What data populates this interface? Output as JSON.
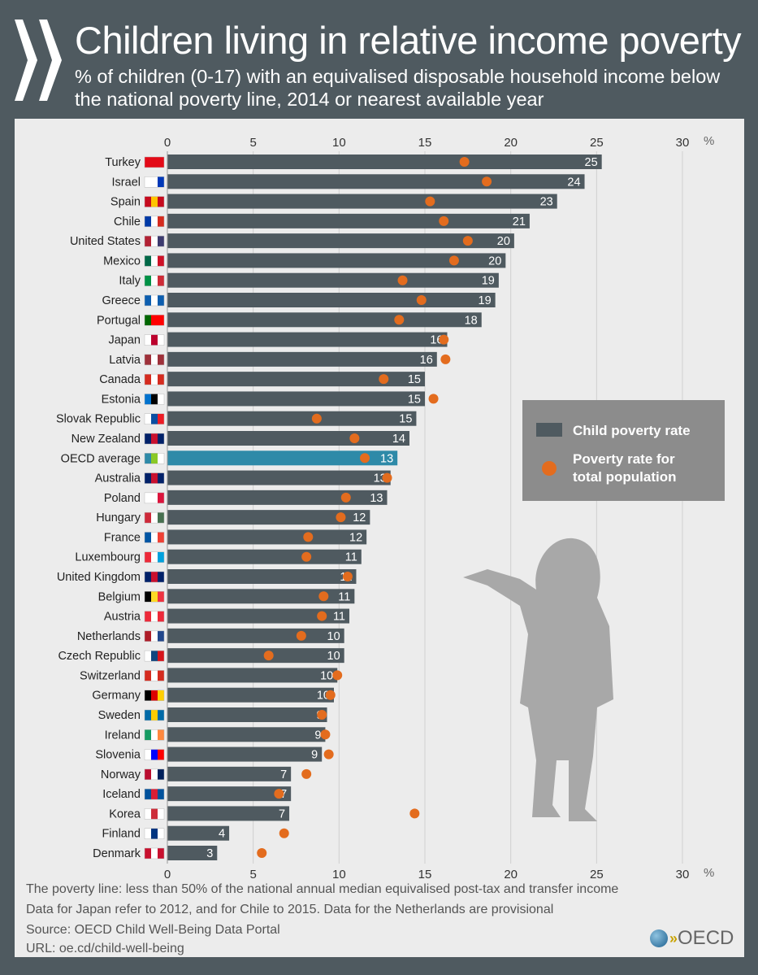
{
  "header": {
    "title": "Children living in relative income poverty",
    "subtitle": "% of children (0-17) with an equivalised disposable household income below the national poverty line, 2014 or nearest available year"
  },
  "chart_data": {
    "type": "bar",
    "orientation": "horizontal",
    "xlim": [
      0,
      30
    ],
    "xticks": [
      0,
      5,
      10,
      15,
      20,
      25,
      30
    ],
    "unit_label": "%",
    "grid": true,
    "legend_position": "right",
    "categories": [
      "Turkey",
      "Israel",
      "Spain",
      "Chile",
      "United States",
      "Mexico",
      "Italy",
      "Greece",
      "Portugal",
      "Japan",
      "Latvia",
      "Canada",
      "Estonia",
      "Slovak Republic",
      "New Zealand",
      "OECD average",
      "Australia",
      "Poland",
      "Hungary",
      "France",
      "Luxembourg",
      "United Kingdom",
      "Belgium",
      "Austria",
      "Netherlands",
      "Czech Republic",
      "Switzerland",
      "Germany",
      "Sweden",
      "Ireland",
      "Slovenia",
      "Norway",
      "Iceland",
      "Korea",
      "Finland",
      "Denmark"
    ],
    "series": [
      {
        "name": "Child poverty rate",
        "type": "bar",
        "color": "#4f5a60",
        "highlight_color": "#2e8aa8",
        "values": [
          25.3,
          24.3,
          22.7,
          21.1,
          20.2,
          19.7,
          19.3,
          19.1,
          18.3,
          16.3,
          15.7,
          15.0,
          15.0,
          14.5,
          14.1,
          13.4,
          13.0,
          12.8,
          11.8,
          11.6,
          11.3,
          11.0,
          10.9,
          10.6,
          10.3,
          10.3,
          9.9,
          9.7,
          9.3,
          9.2,
          9.0,
          7.2,
          7.2,
          7.1,
          3.6,
          2.9
        ],
        "labels": [
          "25",
          "24",
          "23",
          "21",
          "20",
          "20",
          "19",
          "19",
          "18",
          "16",
          "16",
          "15",
          "15",
          "15",
          "14",
          "13",
          "13",
          "13",
          "12",
          "12",
          "11",
          "11",
          "11",
          "11",
          "10",
          "10",
          "10",
          "10",
          "9",
          "9",
          "9",
          "7",
          "7",
          "7",
          "4",
          "3"
        ]
      },
      {
        "name": "Poverty rate for total population",
        "type": "scatter",
        "color": "#e36c1e",
        "values": [
          17.3,
          18.6,
          15.3,
          16.1,
          17.5,
          16.7,
          13.7,
          14.8,
          13.5,
          16.1,
          16.2,
          12.6,
          15.5,
          8.7,
          10.9,
          11.5,
          12.8,
          10.4,
          10.1,
          8.2,
          8.1,
          10.5,
          9.1,
          9.0,
          7.8,
          5.9,
          9.9,
          9.5,
          9.0,
          9.2,
          9.4,
          8.1,
          6.5,
          14.4,
          6.8,
          5.5
        ]
      }
    ],
    "legend": [
      "Child poverty rate",
      "Poverty rate for total population"
    ]
  },
  "flags": [
    [
      "#e30a17",
      "#e30a17",
      "#e30a17"
    ],
    [
      "#fff",
      "#fff",
      "#0038b8"
    ],
    [
      "#c60b1e",
      "#ffc400",
      "#c60b1e"
    ],
    [
      "#0039a6",
      "#fff",
      "#d52b1e"
    ],
    [
      "#b22234",
      "#fff",
      "#3c3b6e"
    ],
    [
      "#006847",
      "#fff",
      "#ce1126"
    ],
    [
      "#009246",
      "#fff",
      "#ce2b37"
    ],
    [
      "#0d5eaf",
      "#fff",
      "#0d5eaf"
    ],
    [
      "#006600",
      "#ff0000",
      "#ff0000"
    ],
    [
      "#fff",
      "#bc002d",
      "#fff"
    ],
    [
      "#9e3039",
      "#fff",
      "#9e3039"
    ],
    [
      "#d52b1e",
      "#fff",
      "#d52b1e"
    ],
    [
      "#0072ce",
      "#000",
      "#fff"
    ],
    [
      "#fff",
      "#0b4ea2",
      "#ee1c25"
    ],
    [
      "#012169",
      "#c8102e",
      "#012169"
    ],
    [
      "#2e8aa8",
      "#8ac926",
      "#fff"
    ],
    [
      "#012169",
      "#c8102e",
      "#012169"
    ],
    [
      "#fff",
      "#fff",
      "#dc143c"
    ],
    [
      "#ce2939",
      "#fff",
      "#477050"
    ],
    [
      "#0055a4",
      "#fff",
      "#ef4135"
    ],
    [
      "#ed2939",
      "#fff",
      "#00a1de"
    ],
    [
      "#012169",
      "#c8102e",
      "#012169"
    ],
    [
      "#000",
      "#fdda24",
      "#ef3340"
    ],
    [
      "#ed2939",
      "#fff",
      "#ed2939"
    ],
    [
      "#ae1c28",
      "#fff",
      "#21468b"
    ],
    [
      "#fff",
      "#11457e",
      "#d7141a"
    ],
    [
      "#d52b1e",
      "#fff",
      "#d52b1e"
    ],
    [
      "#000",
      "#dd0000",
      "#ffce00"
    ],
    [
      "#006aa7",
      "#fecc00",
      "#006aa7"
    ],
    [
      "#169b62",
      "#fff",
      "#ff883e"
    ],
    [
      "#fff",
      "#0000ff",
      "#ff0000"
    ],
    [
      "#ba0c2f",
      "#fff",
      "#00205b"
    ],
    [
      "#02529c",
      "#dc1e35",
      "#02529c"
    ],
    [
      "#fff",
      "#cd2e3a",
      "#fff"
    ],
    [
      "#fff",
      "#003580",
      "#fff"
    ],
    [
      "#c8102e",
      "#fff",
      "#c8102e"
    ]
  ],
  "footer": {
    "note1": "The poverty line: less than 50% of the national annual median equivalised post-tax and transfer income",
    "note2": "Data for Japan refer to 2012, and for Chile to 2015. Data for the Netherlands are provisional",
    "source": "Source: OECD Child Well-Being Data Portal",
    "url": "URL: oe.cd/child-well-being",
    "logo": "OECD"
  }
}
